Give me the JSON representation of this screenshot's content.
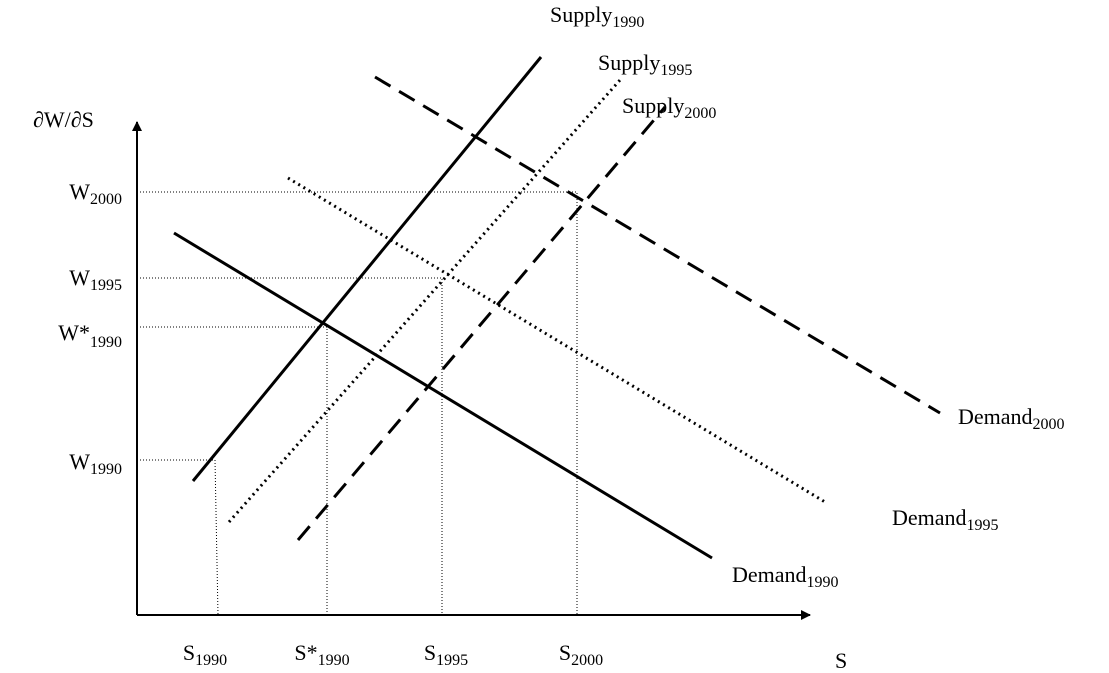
{
  "axes": {
    "y_label": "∂W/∂S",
    "x_label": "S"
  },
  "y_labels": [
    {
      "text": "W",
      "sub": "2000"
    },
    {
      "text": "W",
      "sub": "1995"
    },
    {
      "text": "W*",
      "sub": "1990"
    },
    {
      "text": "W",
      "sub": "1990"
    }
  ],
  "x_labels": [
    {
      "text": "S",
      "sub": "1990"
    },
    {
      "text": "S*",
      "sub": "1990"
    },
    {
      "text": "S",
      "sub": "1995"
    },
    {
      "text": "S",
      "sub": "2000"
    }
  ],
  "curves": [
    {
      "text": "Supply",
      "sub": "1990"
    },
    {
      "text": "Supply",
      "sub": "1995"
    },
    {
      "text": "Supply",
      "sub": "2000"
    },
    {
      "text": "Demand",
      "sub": "1990"
    },
    {
      "text": "Demand",
      "sub": "1995"
    },
    {
      "text": "Demand",
      "sub": "2000"
    }
  ]
}
